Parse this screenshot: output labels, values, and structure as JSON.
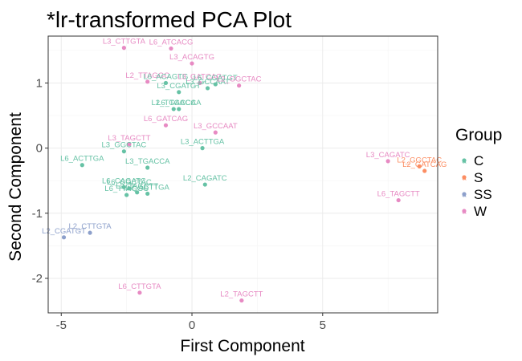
{
  "chart_data": {
    "type": "scatter",
    "title": "*lr-transformed PCA Plot",
    "xlabel": "First Component",
    "ylabel": "Second Component",
    "xlim": [
      -5.5,
      9.4
    ],
    "ylim": [
      -2.53,
      1.72
    ],
    "x_ticks": [
      -5,
      0,
      5
    ],
    "x_tick_labels": [
      "-5",
      "0",
      "5"
    ],
    "y_ticks": [
      -2,
      -1,
      0,
      1
    ],
    "y_tick_labels": [
      "-2",
      "-1",
      "0",
      "1"
    ],
    "grid": true,
    "legend": {
      "title": "Group",
      "position": "right"
    },
    "groups": [
      {
        "name": "C",
        "color": "#66C2A5"
      },
      {
        "name": "S",
        "color": "#FC8D62"
      },
      {
        "name": "SS",
        "color": "#8DA0CB"
      },
      {
        "name": "W",
        "color": "#E78AC3"
      }
    ],
    "points": [
      {
        "label": "L3_CTTGTA",
        "x": -2.6,
        "y": 1.54,
        "group": "W"
      },
      {
        "label": "L6_ATCACG",
        "x": -0.8,
        "y": 1.53,
        "group": "W"
      },
      {
        "label": "L3_ACAGTG",
        "x": 0.0,
        "y": 1.3,
        "group": "W"
      },
      {
        "label": "L2_TTAGGC",
        "x": -1.7,
        "y": 1.02,
        "group": "W"
      },
      {
        "label": "L6_ACAGTG",
        "x": -1.0,
        "y": 1.0,
        "group": "C"
      },
      {
        "label": "L3_CGATGT",
        "x": -0.5,
        "y": 0.86,
        "group": "C"
      },
      {
        "label": "L3_GATCAG",
        "x": 0.3,
        "y": 1.0,
        "group": "W"
      },
      {
        "label": "L3_GCCAAT",
        "x": 0.6,
        "y": 0.92,
        "group": "C"
      },
      {
        "label": "L6_CGATGT",
        "x": 0.9,
        "y": 0.98,
        "group": "C"
      },
      {
        "label": "L2_GGCTAC",
        "x": 1.8,
        "y": 0.96,
        "group": "W"
      },
      {
        "label": "L2_TGACCA",
        "x": -0.7,
        "y": 0.6,
        "group": "C"
      },
      {
        "label": "L6_TGACCA",
        "x": -0.5,
        "y": 0.6,
        "group": "C"
      },
      {
        "label": "L6_GATCAG",
        "x": -1.0,
        "y": 0.35,
        "group": "W"
      },
      {
        "label": "L3_GCCAAT",
        "x": 0.9,
        "y": 0.24,
        "group": "W"
      },
      {
        "label": "L3_TAGCTT",
        "x": -2.4,
        "y": 0.06,
        "group": "W"
      },
      {
        "label": "L3_GGCTAC",
        "x": -2.6,
        "y": -0.05,
        "group": "C"
      },
      {
        "label": "L6_ACTTGA",
        "x": -4.2,
        "y": -0.26,
        "group": "C"
      },
      {
        "label": "L3_ACTTGA",
        "x": 0.4,
        "y": 0.0,
        "group": "C"
      },
      {
        "label": "L3_TGACCA",
        "x": -1.7,
        "y": -0.3,
        "group": "C"
      },
      {
        "label": "L6_CAGATC",
        "x": -2.6,
        "y": -0.6,
        "group": "C"
      },
      {
        "label": "L6_GGCTAC",
        "x": -2.4,
        "y": -0.62,
        "group": "C"
      },
      {
        "label": "L6_TTAGGC",
        "x": -2.5,
        "y": -0.72,
        "group": "C"
      },
      {
        "label": "L2_TAGCTT",
        "x": -2.1,
        "y": -0.68,
        "group": "C"
      },
      {
        "label": "L2_ACTTGA",
        "x": -1.7,
        "y": -0.7,
        "group": "C"
      },
      {
        "label": "L2_CAGATC",
        "x": 0.5,
        "y": -0.56,
        "group": "C"
      },
      {
        "label": "L3_CAGATC",
        "x": 7.5,
        "y": -0.2,
        "group": "W"
      },
      {
        "label": "L2_GGCTAC",
        "x": 8.7,
        "y": -0.28,
        "group": "S"
      },
      {
        "label": "L2_GATCAG",
        "x": 8.9,
        "y": -0.35,
        "group": "S"
      },
      {
        "label": "L6_TAGCTT",
        "x": 7.9,
        "y": -0.8,
        "group": "W"
      },
      {
        "label": "L2_CTTGTA",
        "x": -3.9,
        "y": -1.3,
        "group": "SS"
      },
      {
        "label": "L2_CGATGT",
        "x": -4.9,
        "y": -1.37,
        "group": "SS"
      },
      {
        "label": "L6_CTTGTA",
        "x": -2.0,
        "y": -2.22,
        "group": "W"
      },
      {
        "label": "L2_TAGCTT",
        "x": 1.9,
        "y": -2.34,
        "group": "W"
      }
    ]
  }
}
